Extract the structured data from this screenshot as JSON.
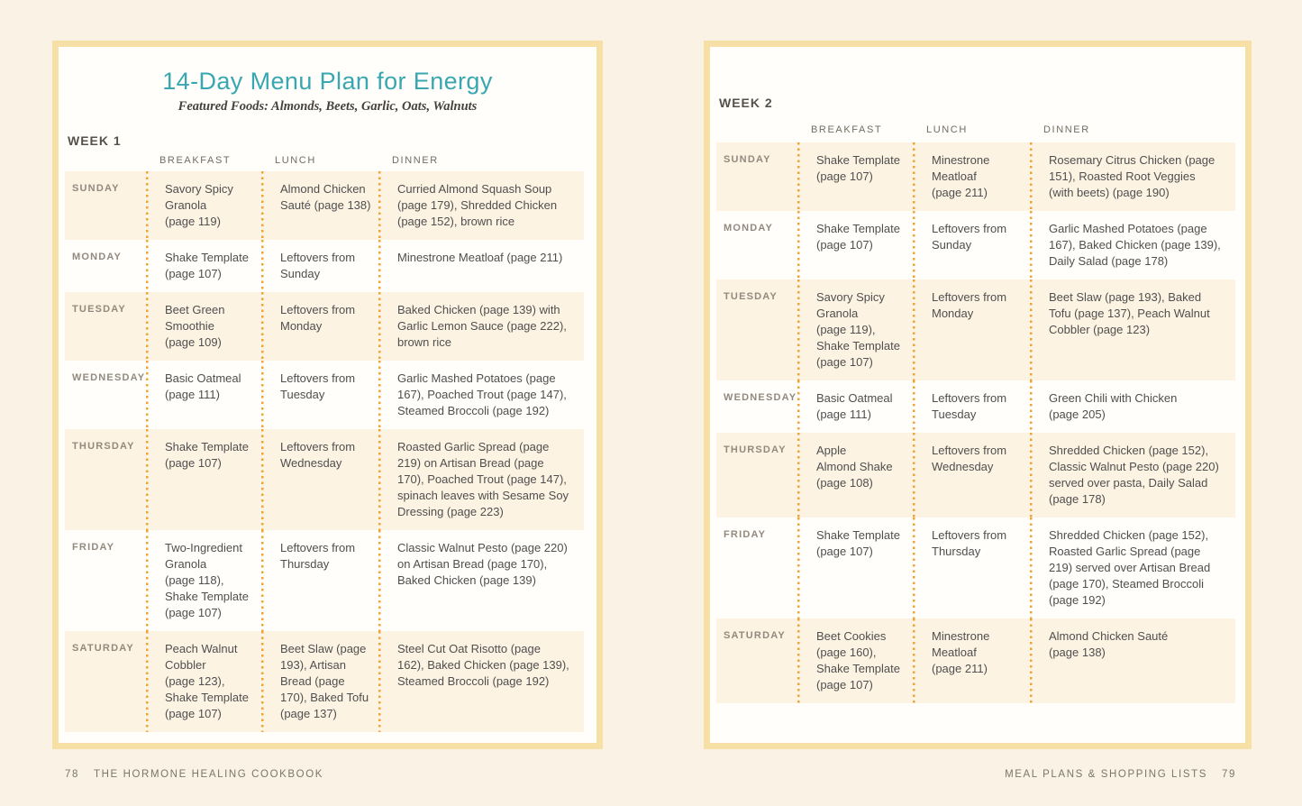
{
  "colors": {
    "title_teal": "#38a7b1",
    "dots_orange": "#f0a433",
    "page_border_gold": "#f6e0a6",
    "row_cream": "#fdf3e3",
    "background_cream": "#f9f2e5"
  },
  "left_page": {
    "title": "14-Day Menu Plan for Energy",
    "subtitle": "Featured Foods: Almonds, Beets, Garlic, Oats, Walnuts",
    "week_label": "WEEK 1",
    "column_headers": [
      "BREAKFAST",
      "LUNCH",
      "DINNER"
    ],
    "rows": [
      {
        "day": "SUNDAY",
        "breakfast": "Savory Spicy\nGranola\n(page 119)",
        "lunch": "Almond Chicken\nSauté (page 138)",
        "dinner": "Curried Almond Squash Soup\n(page 179), Shredded Chicken\n(page 152), brown rice"
      },
      {
        "day": "MONDAY",
        "breakfast": "Shake Template\n(page 107)",
        "lunch": "Leftovers from\nSunday",
        "dinner": "Minestrone Meatloaf (page 211)"
      },
      {
        "day": "TUESDAY",
        "breakfast": "Beet Green\nSmoothie\n(page 109)",
        "lunch": "Leftovers from\nMonday",
        "dinner": "Baked Chicken (page 139) with\nGarlic Lemon Sauce (page 222),\nbrown rice"
      },
      {
        "day": "WEDNESDAY",
        "breakfast": "Basic Oatmeal\n(page 111)",
        "lunch": "Leftovers from\nTuesday",
        "dinner": "Garlic Mashed Potatoes (page\n167), Poached Trout (page 147),\nSteamed Broccoli (page 192)"
      },
      {
        "day": "THURSDAY",
        "breakfast": "Shake Template\n(page 107)",
        "lunch": "Leftovers from\nWednesday",
        "dinner": "Roasted Garlic Spread (page\n219) on Artisan Bread (page\n170), Poached Trout (page 147),\nspinach leaves with Sesame Soy\nDressing (page 223)"
      },
      {
        "day": "FRIDAY",
        "breakfast": "Two-Ingredient\nGranola\n(page 118),\nShake Template\n(page 107)",
        "lunch": "Leftovers from\nThursday",
        "dinner": "Classic Walnut Pesto (page 220)\non Artisan Bread (page 170),\nBaked Chicken (page 139)"
      },
      {
        "day": "SATURDAY",
        "breakfast": "Peach Walnut\nCobbler\n(page 123),\nShake Template\n(page 107)",
        "lunch": "Beet Slaw (page\n193), Artisan\nBread (page\n170), Baked Tofu\n(page 137)",
        "dinner": "Steel Cut Oat Risotto (page\n162), Baked Chicken (page 139),\nSteamed Broccoli (page 192)"
      }
    ],
    "footer": {
      "page_number": "78",
      "book_title": "THE HORMONE HEALING COOKBOOK"
    }
  },
  "right_page": {
    "week_label": "WEEK 2",
    "column_headers": [
      "BREAKFAST",
      "LUNCH",
      "DINNER"
    ],
    "rows": [
      {
        "day": "SUNDAY",
        "breakfast": "Shake Template\n(page 107)",
        "lunch": "Minestrone\nMeatloaf\n(page 211)",
        "dinner": "Rosemary Citrus Chicken (page\n151), Roasted Root Veggies\n(with beets) (page 190)"
      },
      {
        "day": "MONDAY",
        "breakfast": "Shake Template\n(page 107)",
        "lunch": "Leftovers from\nSunday",
        "dinner": "Garlic Mashed Potatoes (page\n167), Baked Chicken (page 139),\nDaily Salad (page 178)"
      },
      {
        "day": "TUESDAY",
        "breakfast": "Savory Spicy\nGranola\n(page 119),\nShake Template\n(page 107)",
        "lunch": "Leftovers from\nMonday",
        "dinner": "Beet Slaw (page 193), Baked\nTofu (page 137), Peach Walnut\nCobbler (page 123)"
      },
      {
        "day": "WEDNESDAY",
        "breakfast": "Basic Oatmeal\n(page 111)",
        "lunch": "Leftovers from\nTuesday",
        "dinner": "Green Chili with Chicken\n(page 205)"
      },
      {
        "day": "THURSDAY",
        "breakfast": "Apple\nAlmond Shake\n(page 108)",
        "lunch": "Leftovers from\nWednesday",
        "dinner": "Shredded Chicken (page 152),\nClassic Walnut Pesto (page 220)\nserved over pasta, Daily Salad\n(page 178)"
      },
      {
        "day": "FRIDAY",
        "breakfast": "Shake Template\n(page 107)",
        "lunch": "Leftovers from\nThursday",
        "dinner": "Shredded Chicken (page 152),\nRoasted Garlic Spread (page\n219) served over Artisan Bread\n(page 170), Steamed Broccoli\n(page 192)"
      },
      {
        "day": "SATURDAY",
        "breakfast": "Beet Cookies\n(page 160),\nShake Template\n(page 107)",
        "lunch": "Minestrone\nMeatloaf\n(page 211)",
        "dinner": "Almond Chicken Sauté\n(page 138)"
      }
    ],
    "footer": {
      "section_title": "MEAL PLANS & SHOPPING LISTS",
      "page_number": "79"
    }
  }
}
